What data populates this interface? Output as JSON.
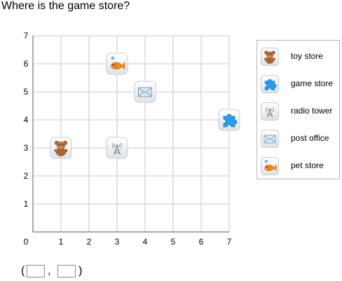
{
  "question": "Where is the game store?",
  "chart_data": {
    "type": "scatter",
    "x_ticks": [
      "0",
      "1",
      "2",
      "3",
      "4",
      "5",
      "6",
      "7"
    ],
    "y_ticks": [
      "1",
      "2",
      "3",
      "4",
      "5",
      "6",
      "7"
    ],
    "xlim": [
      0,
      7
    ],
    "ylim": [
      0,
      7
    ],
    "grid": true,
    "legend_position": "right",
    "points": [
      {
        "icon": "fish-icon",
        "name": "pet store",
        "x": 3,
        "y": 6
      },
      {
        "icon": "envelope-icon",
        "name": "post office",
        "x": 4,
        "y": 5
      },
      {
        "icon": "puzzle-icon",
        "name": "game store",
        "x": 7,
        "y": 4
      },
      {
        "icon": "teddy-bear-icon",
        "name": "toy store",
        "x": 1,
        "y": 3
      },
      {
        "icon": "radio-tower-icon",
        "name": "radio tower",
        "x": 3,
        "y": 3
      }
    ]
  },
  "legend": [
    {
      "icon": "teddy-bear-icon",
      "label": "toy store"
    },
    {
      "icon": "puzzle-icon",
      "label": "game store"
    },
    {
      "icon": "radio-tower-icon",
      "label": "radio tower"
    },
    {
      "icon": "envelope-icon",
      "label": "post office"
    },
    {
      "icon": "fish-icon",
      "label": "pet store"
    }
  ],
  "answer": {
    "open_paren": "(",
    "comma": ",",
    "close_paren": ")",
    "x_value": "",
    "y_value": ""
  },
  "colors": {
    "grid": "#c8c8c8",
    "axis": "#555555",
    "puzzle": "#2a9be8",
    "fish": "#f08a1e",
    "bear": "#a86432",
    "envelope": "#bcd3e6"
  }
}
